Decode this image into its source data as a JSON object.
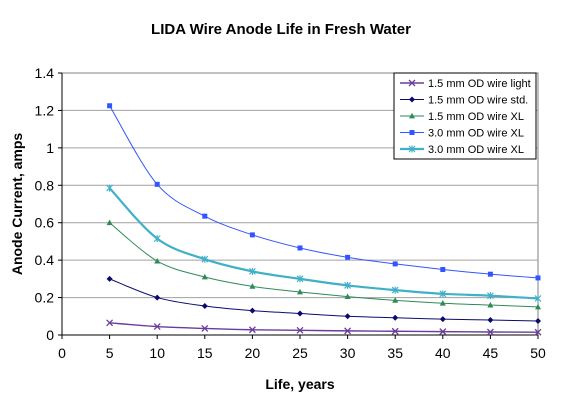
{
  "chart_data": {
    "type": "line",
    "title": "LIDA Wire Anode Life in Fresh Water",
    "xlabel": "Life, years",
    "ylabel": "Anode Current, amps",
    "xlim": [
      0,
      50
    ],
    "ylim": [
      0,
      1.4
    ],
    "xticks": [
      0,
      5,
      10,
      15,
      20,
      25,
      30,
      35,
      40,
      45,
      50
    ],
    "yticks": [
      0,
      0.2,
      0.4,
      0.6,
      0.8,
      1,
      1.2,
      1.4
    ],
    "xtick_labels": [
      "0",
      "5",
      "10",
      "15",
      "20",
      "25",
      "30",
      "35",
      "40",
      "45",
      "50"
    ],
    "ytick_labels": [
      "0",
      "0.2",
      "0.4",
      "0.6",
      "0.8",
      "1",
      "1.2",
      "1.4"
    ],
    "grid": "horizontal",
    "legend_position": "top-right",
    "x": [
      5,
      10,
      15,
      20,
      25,
      30,
      35,
      40,
      45,
      50
    ],
    "series": [
      {
        "name": "1.5 mm OD wire light",
        "color": "#6a3d9a",
        "marker": "x",
        "values": [
          0.065,
          0.045,
          0.035,
          0.028,
          0.025,
          0.022,
          0.02,
          0.018,
          0.016,
          0.015
        ]
      },
      {
        "name": "1.5 mm OD wire std.",
        "color": "#0b0b6e",
        "marker": "diamond",
        "values": [
          0.3,
          0.2,
          0.155,
          0.13,
          0.115,
          0.1,
          0.092,
          0.085,
          0.08,
          0.075
        ]
      },
      {
        "name": "1.5 mm OD wire XL",
        "color": "#2e8b57",
        "marker": "triangle",
        "values": [
          0.6,
          0.395,
          0.31,
          0.26,
          0.23,
          0.205,
          0.185,
          0.17,
          0.16,
          0.15
        ]
      },
      {
        "name": "3.0 mm OD wire XL",
        "color": "#3355ff",
        "marker": "square",
        "values": [
          1.225,
          0.805,
          0.635,
          0.535,
          0.465,
          0.415,
          0.38,
          0.35,
          0.325,
          0.305
        ]
      },
      {
        "name": "3.0 mm OD wire XL",
        "color": "#40b0c8",
        "marker": "star",
        "values": [
          0.785,
          0.515,
          0.405,
          0.34,
          0.3,
          0.265,
          0.24,
          0.22,
          0.21,
          0.195
        ]
      }
    ]
  }
}
